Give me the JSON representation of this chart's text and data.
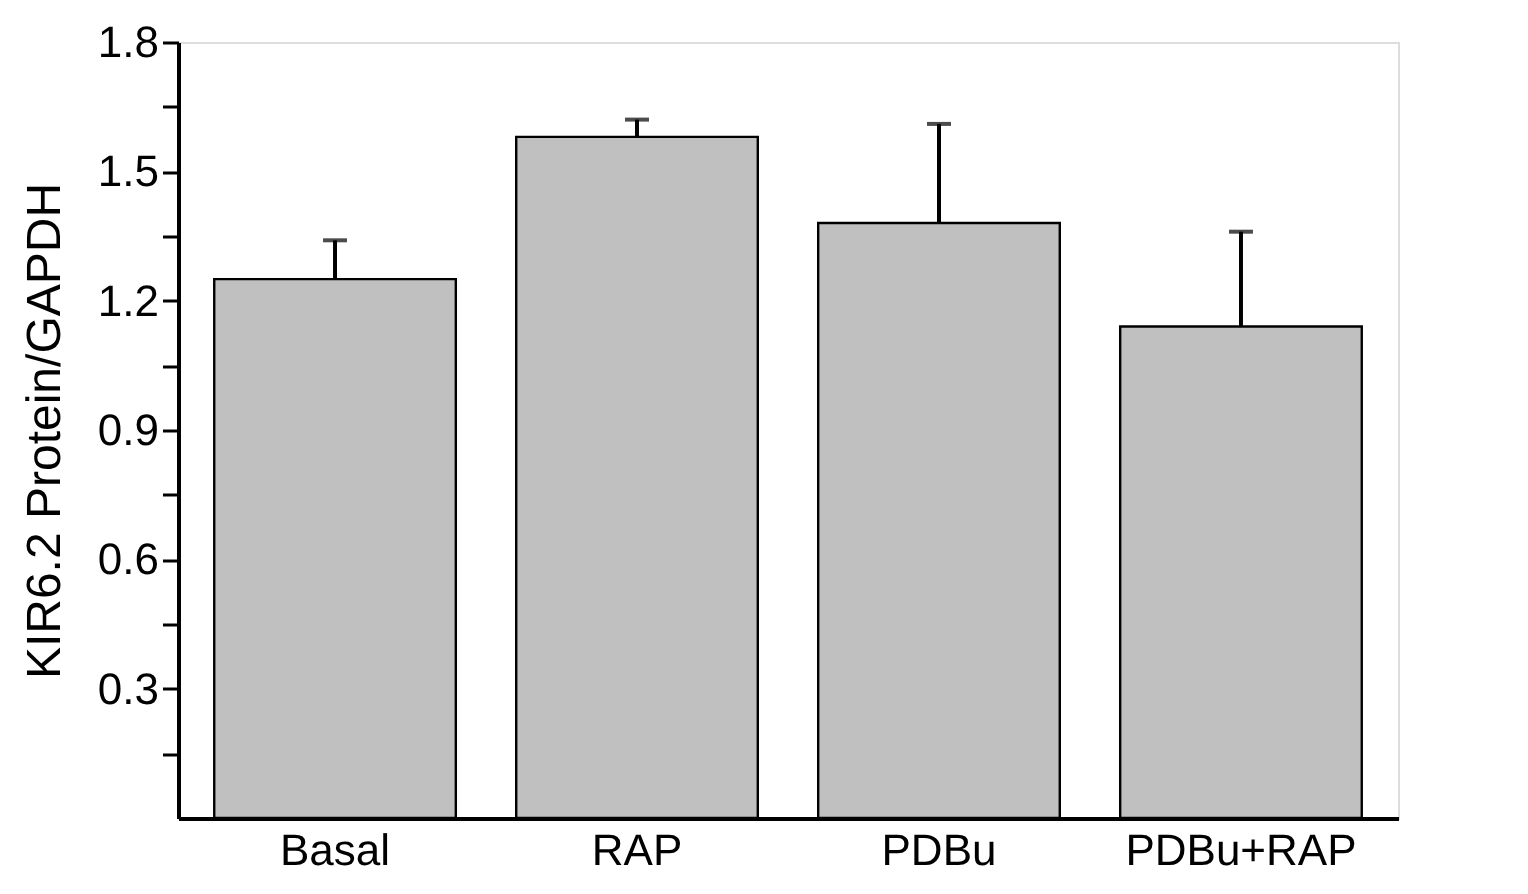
{
  "chart_data": {
    "type": "bar",
    "ylabel": "KIR6.2 Protein/GAPDH",
    "categories": [
      "Basal",
      "RAP",
      "PDBu",
      "PDBu+RAP"
    ],
    "values": [
      1.25,
      1.58,
      1.38,
      1.14
    ],
    "errors": [
      [
        1.25,
        1.34
      ],
      [
        1.58,
        1.62
      ],
      [
        1.38,
        1.61
      ],
      [
        1.14,
        1.36
      ]
    ],
    "color": "#c0c0c0",
    "ylim": [
      0,
      1.8
    ],
    "yticks": [
      {
        "value": 0.15,
        "label": null
      },
      0.3,
      {
        "value": 0.45,
        "label": null
      },
      0.6,
      {
        "value": 0.75,
        "label": null
      },
      0.9,
      {
        "value": 1.05,
        "label": null
      },
      1.2,
      {
        "value": 1.35,
        "label": null
      },
      1.5,
      {
        "value": 1.65,
        "label": null
      },
      1.8
    ],
    "grid": false
  }
}
